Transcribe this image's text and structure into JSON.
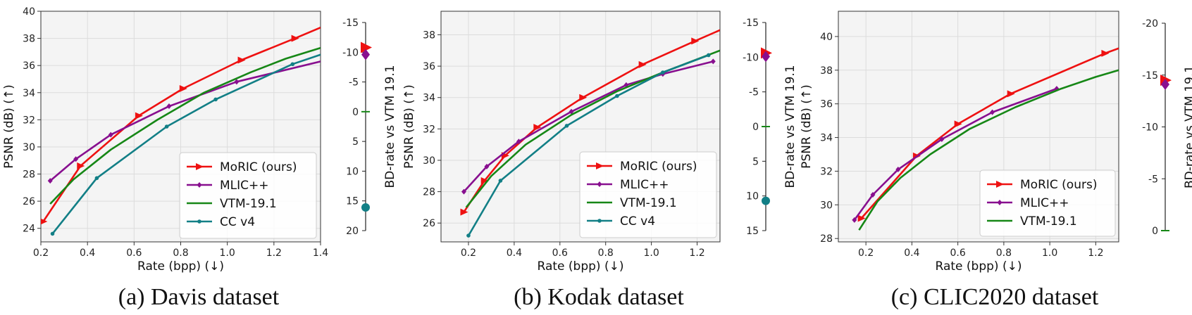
{
  "panels": [
    {
      "caption": "(a) Davis dataset",
      "chart_data": {
        "type": "line",
        "xlabel": "Rate (bpp) (↓)",
        "ylabel": "PSNR (dB) (↑)",
        "xlim": [
          0.2,
          1.4
        ],
        "ylim": [
          23,
          40
        ],
        "xticks": [
          "0.2",
          "0.4",
          "0.6",
          "0.8",
          "1.0",
          "1.2",
          "1.4"
        ],
        "yticks": [
          "24",
          "26",
          "28",
          "30",
          "32",
          "34",
          "36",
          "38",
          "40"
        ],
        "legend_position": "lower-right",
        "series": [
          {
            "name": "MoRIC (ours)",
            "color": "#ee1111",
            "marker": "triangle-right",
            "x": [
              0.21,
              0.37,
              0.62,
              0.81,
              1.06,
              1.29,
              1.4
            ],
            "y": [
              24.5,
              28.6,
              32.3,
              34.3,
              36.4,
              38.0,
              38.8
            ]
          },
          {
            "name": "MLIC++",
            "color": "#880f8f",
            "marker": "diamond",
            "x": [
              0.24,
              0.35,
              0.5,
              0.75,
              1.04,
              1.4
            ],
            "y": [
              27.5,
              29.1,
              30.9,
              33.0,
              34.8,
              36.3
            ]
          },
          {
            "name": "VTM-19.1",
            "color": "#168716",
            "marker": "none",
            "x": [
              0.24,
              0.34,
              0.5,
              0.7,
              0.9,
              1.1,
              1.25,
              1.4
            ],
            "y": [
              25.8,
              27.6,
              29.8,
              32.0,
              34.0,
              35.5,
              36.5,
              37.3
            ]
          },
          {
            "name": "CC v4",
            "color": "#127f86",
            "marker": "circle",
            "x": [
              0.25,
              0.44,
              0.74,
              0.95,
              1.28,
              1.4
            ],
            "y": [
              23.6,
              27.7,
              31.5,
              33.5,
              36.1,
              36.8
            ]
          }
        ],
        "bd_axis": {
          "label": "BD-rate vs VTM 19.1",
          "range": [
            20,
            -15
          ],
          "ticks": [
            "-15",
            "-10",
            "-5",
            "0",
            "5",
            "10",
            "15",
            "20"
          ],
          "points": [
            {
              "name": "MoRIC (ours)",
              "value": -10.8
            },
            {
              "name": "MLIC++",
              "value": -9.6
            },
            {
              "name": "VTM-19.1",
              "value": 0
            },
            {
              "name": "CC v4",
              "value": 16.1
            }
          ]
        }
      }
    },
    {
      "caption": "(b) Kodak dataset",
      "chart_data": {
        "type": "line",
        "xlabel": "Rate (bpp) (↓)",
        "ylabel": "PSNR (dB) (↑)",
        "xlim": [
          0.08,
          1.3
        ],
        "ylim": [
          24.8,
          39.5
        ],
        "xticks": [
          "0.2",
          "0.4",
          "0.6",
          "0.8",
          "1.0",
          "1.2"
        ],
        "yticks": [
          "26",
          "28",
          "30",
          "32",
          "34",
          "36",
          "38"
        ],
        "legend_position": "lower-right",
        "series": [
          {
            "name": "MoRIC (ours)",
            "color": "#ee1111",
            "marker": "triangle-right",
            "x": [
              0.18,
              0.27,
              0.36,
              0.5,
              0.7,
              0.96,
              1.19,
              1.3
            ],
            "y": [
              26.7,
              28.7,
              30.3,
              32.1,
              34.0,
              36.1,
              37.6,
              38.3
            ]
          },
          {
            "name": "MLIC++",
            "color": "#880f8f",
            "marker": "diamond",
            "x": [
              0.18,
              0.28,
              0.42,
              0.65,
              0.89,
              1.05,
              1.27
            ],
            "y": [
              28.0,
              29.6,
              31.2,
              33.1,
              34.8,
              35.5,
              36.3
            ]
          },
          {
            "name": "VTM-19.1",
            "color": "#168716",
            "marker": "none",
            "x": [
              0.19,
              0.3,
              0.45,
              0.65,
              0.85,
              1.05,
              1.3
            ],
            "y": [
              27.0,
              29.0,
              31.0,
              32.9,
              34.4,
              35.6,
              37.0
            ]
          },
          {
            "name": "CC v4",
            "color": "#127f86",
            "marker": "circle",
            "x": [
              0.2,
              0.34,
              0.63,
              0.85,
              1.05,
              1.25
            ],
            "y": [
              25.2,
              28.7,
              32.2,
              34.1,
              35.6,
              36.7
            ]
          }
        ],
        "bd_axis": {
          "label": "BD-rate vs VTM 19.1",
          "range": [
            15,
            -15
          ],
          "ticks": [
            "-15",
            "-10",
            "-5",
            "0",
            "5",
            "10",
            "15"
          ],
          "points": [
            {
              "name": "MoRIC (ours)",
              "value": -10.6
            },
            {
              "name": "MLIC++",
              "value": -10.1
            },
            {
              "name": "VTM-19.1",
              "value": 0
            },
            {
              "name": "CC v4",
              "value": 10.7
            }
          ]
        }
      }
    },
    {
      "caption": "(c) CLIC2020 dataset",
      "chart_data": {
        "type": "line",
        "xlabel": "Rate (bpp) (↓)",
        "ylabel": "PSNR (dB) (↑)",
        "xlim": [
          0.08,
          1.3
        ],
        "ylim": [
          27.8,
          41.5
        ],
        "xticks": [
          "0.2",
          "0.4",
          "0.6",
          "0.8",
          "1.0",
          "1.2"
        ],
        "yticks": [
          "28",
          "30",
          "32",
          "34",
          "36",
          "38",
          "40"
        ],
        "legend_position": "lower-right",
        "series": [
          {
            "name": "MoRIC (ours)",
            "color": "#ee1111",
            "marker": "triangle-right",
            "x": [
              0.18,
              0.42,
              0.6,
              0.83,
              1.24,
              1.3
            ],
            "y": [
              29.2,
              32.9,
              34.8,
              36.6,
              39.0,
              39.3
            ]
          },
          {
            "name": "MLIC++",
            "color": "#880f8f",
            "marker": "diamond",
            "x": [
              0.15,
              0.23,
              0.34,
              0.53,
              0.75,
              1.03
            ],
            "y": [
              29.1,
              30.6,
              32.1,
              33.9,
              35.5,
              36.9
            ]
          },
          {
            "name": "VTM-19.1",
            "color": "#168716",
            "marker": "none",
            "x": [
              0.17,
              0.25,
              0.35,
              0.48,
              0.65,
              0.85,
              1.05,
              1.2,
              1.3
            ],
            "y": [
              28.5,
              30.2,
              31.6,
              33.0,
              34.5,
              35.8,
              36.9,
              37.6,
              38.0
            ]
          }
        ],
        "bd_axis": {
          "label": "BD-rate vs VTM 19.1",
          "range": [
            0,
            -20
          ],
          "ticks": [
            "-20",
            "-15",
            "-10",
            "-5",
            "0"
          ],
          "points": [
            {
              "name": "MoRIC (ours)",
              "value": -14.5
            },
            {
              "name": "MLIC++",
              "value": -14.1
            },
            {
              "name": "VTM-19.1",
              "value": 0
            }
          ]
        }
      }
    }
  ]
}
